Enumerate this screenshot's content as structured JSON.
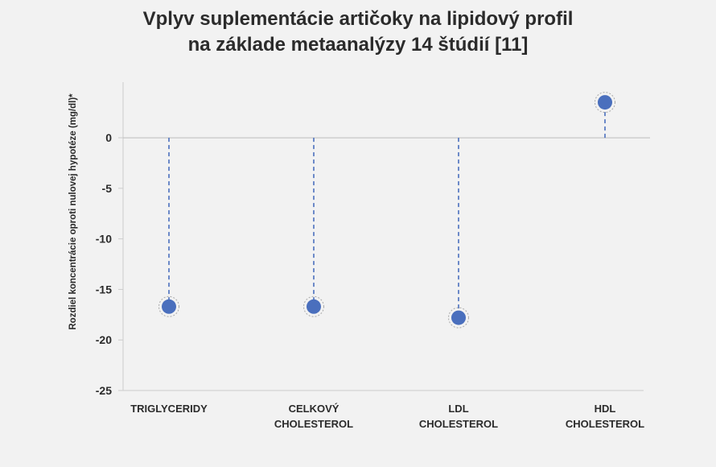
{
  "title_lines": [
    "Vplyv suplementácie artičoky na lipidový profil",
    "na základe metaanalýzy 14 štúdií [11]"
  ],
  "chart_data": {
    "type": "scatter",
    "title": "Vplyv suplementácie artičoky na lipidový profil na základe metaanalýzy 14 štúdií [11]",
    "xlabel": "",
    "ylabel": "Rozdiel koncentrácie oproti nulovej hypotéze (mg/dl)*",
    "categories": [
      [
        "TRIGLYCERIDY"
      ],
      [
        "CELKOVÝ",
        "CHOLESTEROL"
      ],
      [
        "LDL",
        "CHOLESTEROL"
      ],
      [
        "HDL",
        "CHOLESTEROL"
      ]
    ],
    "values": [
      -16.7,
      -16.7,
      -17.8,
      3.5
    ],
    "yticks": [
      0,
      -5,
      -10,
      -15,
      -20,
      -25
    ],
    "ylim": [
      -25,
      5.5
    ],
    "grid": false,
    "legend": "none",
    "colors": {
      "point": "#4a6fbd",
      "stem": "#4a6fbd",
      "axis": "#cccccc",
      "zero_line": "#bdbdbd",
      "halo": "#a8a8a8"
    }
  }
}
